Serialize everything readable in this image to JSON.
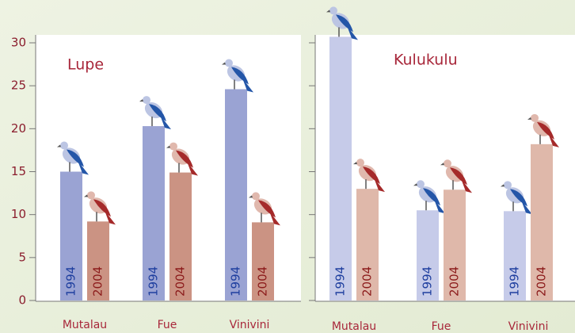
{
  "chart_data": [
    {
      "type": "bar",
      "title": "Lupe",
      "categories": [
        "Mutalau",
        "Fue",
        "Vinivini"
      ],
      "series": [
        {
          "name": "1994",
          "color": "#9aa3d3",
          "values": [
            15.0,
            20.3,
            24.6
          ]
        },
        {
          "name": "2004",
          "color": "#cb9383",
          "values": [
            9.2,
            14.9,
            9.1
          ]
        }
      ],
      "ylim": [
        0,
        30
      ],
      "yticks": [
        0,
        5,
        10,
        15,
        20,
        25,
        30
      ]
    },
    {
      "type": "bar",
      "title": "Kulukulu",
      "categories": [
        "Mutalau",
        "Fue",
        "Vinivini"
      ],
      "series": [
        {
          "name": "1994",
          "color": "#c6cbe9",
          "values": [
            30.7,
            10.5,
            10.4
          ]
        },
        {
          "name": "2004",
          "color": "#dfb8aa",
          "values": [
            13.0,
            12.9,
            18.2
          ]
        }
      ],
      "ylim": [
        0,
        30
      ],
      "yticks": [
        0,
        5,
        10,
        15,
        20,
        25,
        30
      ]
    }
  ]
}
